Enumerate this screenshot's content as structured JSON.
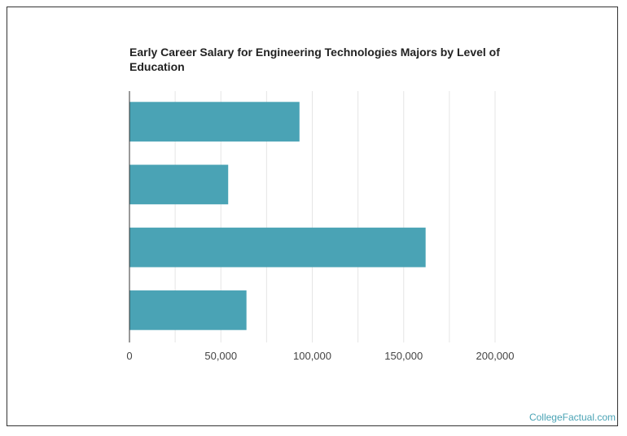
{
  "chart_data": {
    "type": "bar",
    "orientation": "horizontal",
    "title": "Early Career Salary for Engineering Technologies Majors by Level of Education",
    "categories": [
      "",
      "",
      "",
      ""
    ],
    "values": [
      93000,
      54000,
      162000,
      64000
    ],
    "xlim": [
      0,
      200000
    ],
    "xticks": [
      0,
      50000,
      100000,
      150000,
      200000
    ],
    "xtick_labels": [
      "0",
      "50,000",
      "100,000",
      "150,000",
      "200,000"
    ],
    "grid": true,
    "bar_color": "#4aa3b5",
    "grid_color": "#e5e5e5"
  },
  "watermark": "CollegeFactual.com"
}
